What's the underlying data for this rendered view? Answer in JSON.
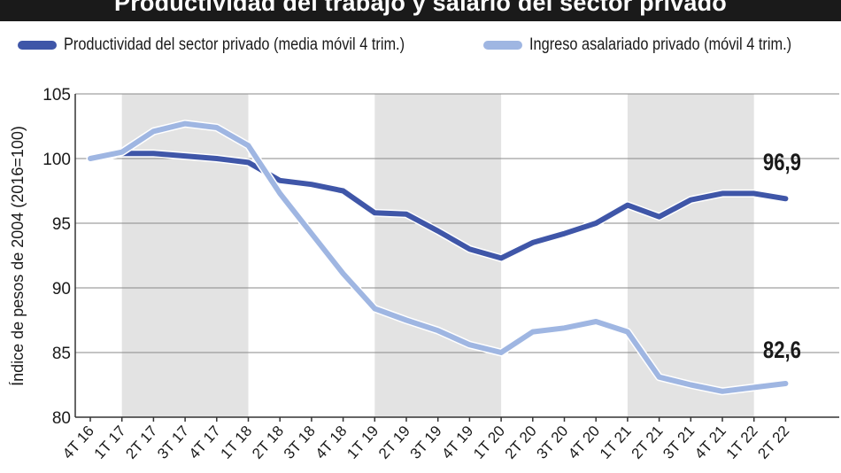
{
  "title": "Productividad del trabajo y salario del sector privado",
  "legend": {
    "position": "top",
    "items": [
      {
        "label": "Productividad del sector privado (media móvil 4 trim.)",
        "color": "#3f56a8"
      },
      {
        "label": "Ingreso asalariado privado (móvil 4 trim.)",
        "color": "#9fb6e2"
      }
    ]
  },
  "chart_data": {
    "type": "line",
    "title": "Productividad del trabajo y salario del sector privado",
    "xlabel": "",
    "ylabel": "Índice de pesos de 2004 (2016=100)",
    "ylim": [
      80,
      105
    ],
    "yticks": [
      80,
      85,
      90,
      95,
      100,
      105
    ],
    "grid": "horizontal",
    "shading": "alternating yearly bands (gray / white)",
    "legend_position": "top",
    "categories": [
      "4T 16",
      "1T 17",
      "2T 17",
      "3T 17",
      "4T 17",
      "1T 18",
      "2T 18",
      "3T 18",
      "4T 18",
      "1T 19",
      "2T 19",
      "3T 19",
      "4T 19",
      "1T 20",
      "2T 20",
      "3T 20",
      "4T 20",
      "1T 21",
      "2T 21",
      "3T 21",
      "4T 21",
      "1T 22",
      "2T 22"
    ],
    "series": [
      {
        "name": "Productividad del sector privado (media móvil 4 trim.)",
        "color": "#3f56a8",
        "values": [
          100.0,
          100.4,
          100.4,
          100.2,
          100.0,
          99.7,
          98.3,
          98.0,
          97.5,
          95.8,
          95.7,
          94.4,
          93.0,
          92.3,
          93.5,
          94.2,
          95.0,
          96.4,
          95.5,
          96.8,
          97.3,
          97.3,
          96.9
        ],
        "end_label": "96,9"
      },
      {
        "name": "Ingreso asalariado privado (móvil 4 trim.)",
        "color": "#9fb6e2",
        "values": [
          100.0,
          100.5,
          102.1,
          102.7,
          102.4,
          101.0,
          97.3,
          94.2,
          91.1,
          88.4,
          87.5,
          86.7,
          85.6,
          85.0,
          86.6,
          86.9,
          87.4,
          86.6,
          83.1,
          82.5,
          82.0,
          82.3,
          82.6
        ],
        "end_label": "82,6"
      }
    ]
  }
}
